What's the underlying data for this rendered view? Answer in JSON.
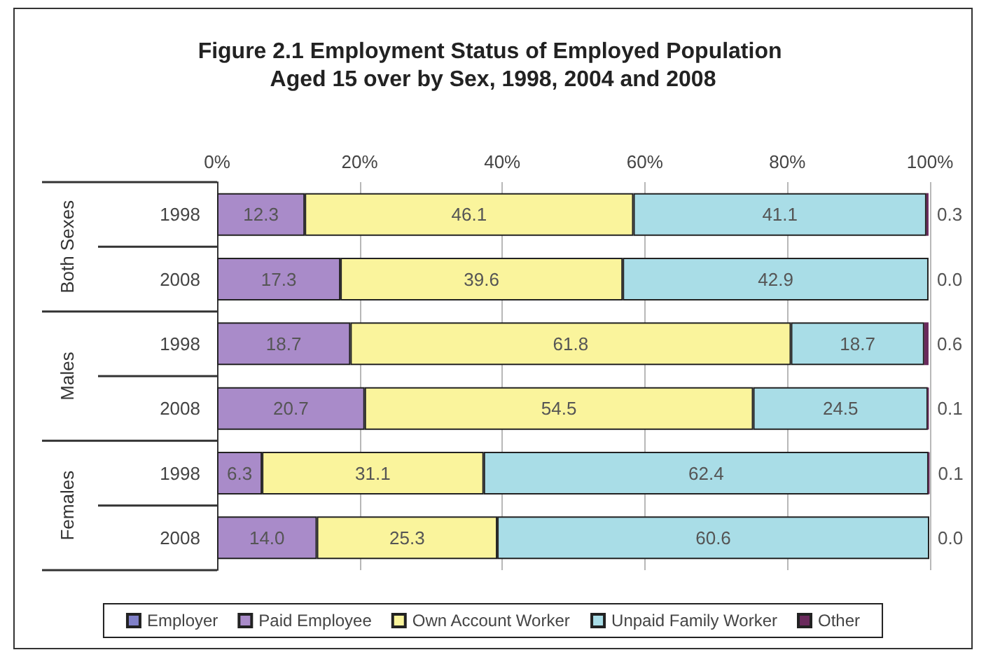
{
  "chart_data": {
    "type": "bar",
    "orientation": "horizontal",
    "stacked": true,
    "title": "Figure 2.1 Employment Status of Employed Population Aged 15 over by Sex, 1998, 2004 and 2008",
    "categories": [
      "1998",
      "2008",
      "1998",
      "2008",
      "1998",
      "2008"
    ],
    "annotations": [
      "Both Sexes",
      "Males",
      "Females"
    ],
    "series": [
      {
        "name": "Employer",
        "color": "#8080c8",
        "values": [
          null,
          null,
          null,
          null,
          null,
          null
        ],
        "value_labels": [
          null,
          null,
          null,
          null,
          null,
          null
        ]
      },
      {
        "name": "Paid Employee",
        "color": "#a98bc9",
        "values": [
          12.3,
          17.3,
          18.7,
          20.7,
          6.3,
          14.0
        ],
        "value_labels": [
          "12.3",
          "17.3",
          "18.7",
          "20.7",
          "6.3",
          "14.0"
        ]
      },
      {
        "name": "Own Account Worker",
        "color": "#faf49c",
        "values": [
          46.1,
          39.6,
          61.8,
          54.5,
          31.1,
          25.3
        ],
        "value_labels": [
          "46.1",
          "39.6",
          "61.8",
          "54.5",
          "31.1",
          "25.3"
        ]
      },
      {
        "name": "Unpaid Family Worker",
        "color": "#a9dde7",
        "values": [
          41.1,
          42.9,
          18.7,
          24.5,
          62.4,
          60.6
        ],
        "value_labels": [
          "41.1",
          "42.9",
          "18.7",
          "24.5",
          "62.4",
          "60.6"
        ]
      },
      {
        "name": "Other",
        "color": "#6a2a5c",
        "values": [
          0.3,
          0.0,
          0.6,
          0.1,
          0.1,
          0.0
        ],
        "value_labels": [
          "0.3",
          "0.0",
          "0.6",
          "0.1",
          "0.1",
          "0.0"
        ]
      }
    ],
    "xlim": [
      0,
      100
    ],
    "xticks": [
      {
        "value": 0,
        "label": "0%"
      },
      {
        "value": 20,
        "label": "20%"
      },
      {
        "value": 40,
        "label": "40%"
      },
      {
        "value": 60,
        "label": "60%"
      },
      {
        "value": 80,
        "label": "80%"
      },
      {
        "value": 100,
        "label": "100%"
      }
    ],
    "grid": "x",
    "legend": "bottom"
  }
}
